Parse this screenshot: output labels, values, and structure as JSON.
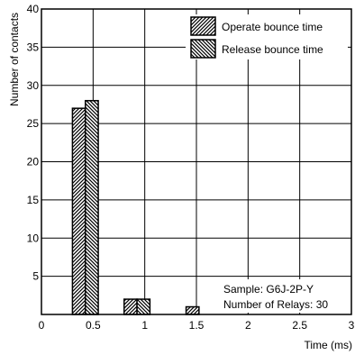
{
  "chart_data": {
    "type": "bar",
    "title": "",
    "xlabel": "Time (ms)",
    "ylabel": "Number of contacts",
    "xlim": [
      0,
      3
    ],
    "ylim": [
      0,
      40
    ],
    "x_ticks": [
      0,
      0.5,
      1,
      1.5,
      2,
      2.5,
      3
    ],
    "x_tick_labels": [
      "0",
      "0.5",
      "1",
      "1.5",
      "2",
      "2.5",
      "3"
    ],
    "y_ticks": [
      5,
      10,
      15,
      20,
      25,
      30,
      35,
      40
    ],
    "y_tick_labels": [
      "5",
      "10",
      "15",
      "20",
      "25",
      "30",
      "35",
      "40"
    ],
    "grid": true,
    "legend_position": "top-right",
    "bar_width": 0.125,
    "series": [
      {
        "name": "Operate bounce time",
        "pattern": "forward-hatch",
        "bars": [
          {
            "x_start": 0.3,
            "value": 27
          },
          {
            "x_start": 0.8,
            "value": 2
          },
          {
            "x_start": 1.4,
            "value": 1
          }
        ]
      },
      {
        "name": "Release bounce time",
        "pattern": "back-hatch",
        "bars": [
          {
            "x_start": 0.425,
            "value": 28
          },
          {
            "x_start": 0.925,
            "value": 2
          }
        ]
      }
    ],
    "annotations": [
      "Sample: G6J-2P-Y",
      "Number of Relays: 30"
    ]
  }
}
